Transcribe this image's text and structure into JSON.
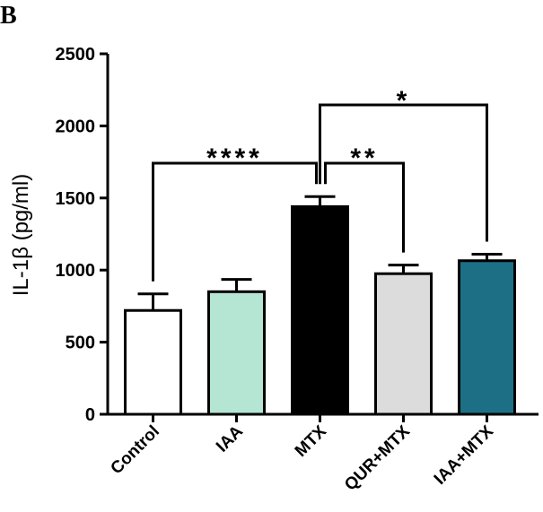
{
  "panel_label": "B",
  "chart_data": {
    "type": "bar",
    "title": "",
    "xlabel": "",
    "ylabel": "IL-1β (pg/ml)",
    "ylim": [
      0,
      2500
    ],
    "yticks": [
      0,
      500,
      1000,
      1500,
      2000,
      2500
    ],
    "grid": false,
    "legend": "none",
    "categories": [
      "Control",
      "IAA",
      "MTX",
      "QUR+MTX",
      "IAA+MTX"
    ],
    "values": [
      720,
      850,
      1440,
      975,
      1065
    ],
    "error_upper": [
      835,
      935,
      1510,
      1035,
      1110
    ],
    "colors": [
      "#ffffff",
      "#b5e5d3",
      "#000000",
      "#dcdcdc",
      "#1d6f86"
    ],
    "comparisons": [
      {
        "from": "Control",
        "to": "MTX",
        "label": "****"
      },
      {
        "from": "MTX",
        "to": "QUR+MTX",
        "label": "**"
      },
      {
        "from": "MTX",
        "to": "IAA+MTX",
        "label": "*"
      }
    ]
  }
}
